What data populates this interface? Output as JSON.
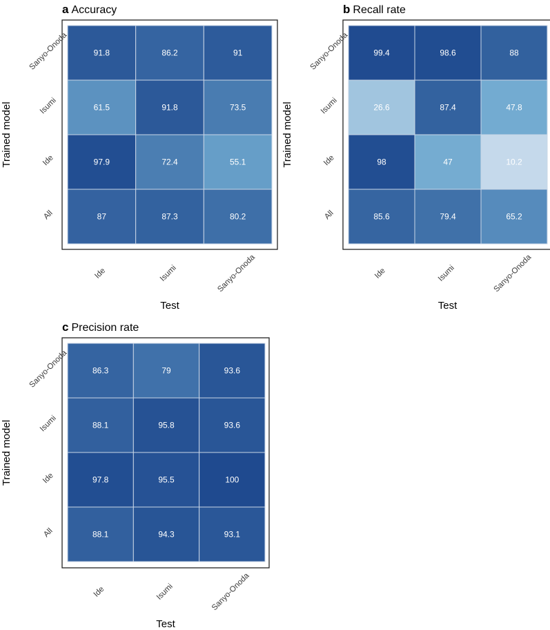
{
  "chart_data": [
    {
      "type": "heatmap",
      "panel": "a",
      "title": "Accuracy",
      "xlabel": "Test",
      "ylabel": "Trained model",
      "x_categories": [
        "Ide",
        "Isumi",
        "Sanyo-Onoda"
      ],
      "y_categories": [
        "Sanyo-Onoda",
        "Isumi",
        "Ide",
        "All"
      ],
      "values": [
        [
          91.8,
          86.2,
          91
        ],
        [
          61.5,
          91.8,
          73.5
        ],
        [
          97.9,
          72.4,
          55.1
        ],
        [
          87,
          87.3,
          80.2
        ]
      ],
      "value_labels": [
        [
          "91.8",
          "86.2",
          "91"
        ],
        [
          "61.5",
          "91.8",
          "73.5"
        ],
        [
          "97.9",
          "72.4",
          "55.1"
        ],
        [
          "87",
          "87.3",
          "80.2"
        ]
      ],
      "range": [
        0,
        100
      ]
    },
    {
      "type": "heatmap",
      "panel": "b",
      "title": "Recall rate",
      "xlabel": "Test",
      "ylabel": "Trained model",
      "x_categories": [
        "Ide",
        "Isumi",
        "Sanyo-Onoda"
      ],
      "y_categories": [
        "Sanyo-Onoda",
        "Isumi",
        "Ide",
        "All"
      ],
      "values": [
        [
          99.4,
          98.6,
          88
        ],
        [
          26.6,
          87.4,
          47.8
        ],
        [
          98,
          47,
          10.2
        ],
        [
          85.6,
          79.4,
          65.2
        ]
      ],
      "value_labels": [
        [
          "99.4",
          "98.6",
          "88"
        ],
        [
          "26.6",
          "87.4",
          "47.8"
        ],
        [
          "98",
          "47",
          "10.2"
        ],
        [
          "85.6",
          "79.4",
          "65.2"
        ]
      ],
      "range": [
        0,
        100
      ]
    },
    {
      "type": "heatmap",
      "panel": "c",
      "title": "Precision rate",
      "xlabel": "Test",
      "ylabel": "Trained model",
      "x_categories": [
        "Ide",
        "Isumi",
        "Sanyo-Onoda"
      ],
      "y_categories": [
        "Sanyo-Onoda",
        "Isumi",
        "Ide",
        "All"
      ],
      "values": [
        [
          86.3,
          79,
          93.6
        ],
        [
          88.1,
          95.8,
          93.6
        ],
        [
          97.8,
          95.5,
          100
        ],
        [
          88.1,
          94.3,
          93.1
        ]
      ],
      "value_labels": [
        [
          "86.3",
          "79",
          "93.6"
        ],
        [
          "88.1",
          "95.8",
          "93.6"
        ],
        [
          "97.8",
          "95.5",
          "100"
        ],
        [
          "88.1",
          "94.3",
          "93.1"
        ]
      ],
      "range": [
        0,
        100
      ]
    }
  ],
  "colors": {
    "low": "#dbe6f2",
    "mid": "#6ea8cf",
    "high": "#1f4a8f",
    "text": "#ffffff"
  }
}
